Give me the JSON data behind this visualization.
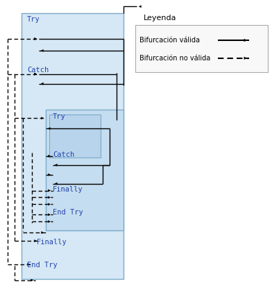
{
  "bg_color": "#ffffff",
  "box_outer_fill": "#d6e8f5",
  "box_inner_fill": "#c5ddf0",
  "box_innermost_fill": "#b8d3ec",
  "box_border": "#7aaac8",
  "text_color": "#2244aa",
  "arrow_color": "#000000",
  "legend_title": "Leyenda",
  "legend_items": [
    {
      "label": "Bifurcación válida",
      "style": "solid"
    },
    {
      "label": "Bifurcación no válida",
      "style": "dashed"
    }
  ]
}
